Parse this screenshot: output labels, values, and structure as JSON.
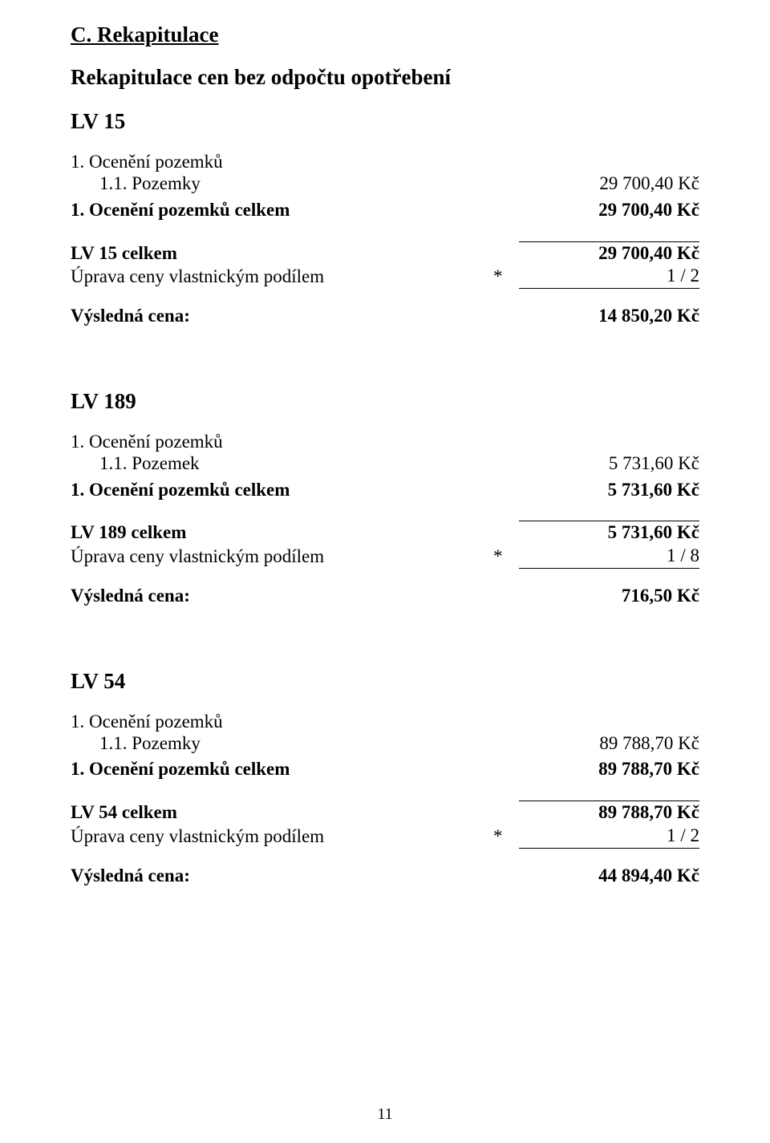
{
  "title_c": "C. Rekapitulace",
  "subtitle": "Rekapitulace cen bez odpočtu opotřebení",
  "sections": [
    {
      "lv_heading": "LV 15",
      "item_head": "1. Ocenění pozemků",
      "sub_item_label": "1.1. Pozemky",
      "sub_item_value": "29 700,40 Kč",
      "total_item_label": "1. Ocenění pozemků celkem",
      "total_item_value": "29 700,40 Kč",
      "lv_total_label": "LV 15 celkem",
      "lv_total_value": "29 700,40 Kč",
      "adjust_label": "Úprava ceny vlastnickým podílem",
      "adjust_star": "*",
      "adjust_value": "1 / 2",
      "result_label": "Výsledná cena:",
      "result_value": "14 850,20 Kč"
    },
    {
      "lv_heading": "LV 189",
      "item_head": "1. Ocenění pozemků",
      "sub_item_label": "1.1. Pozemek",
      "sub_item_value": "5 731,60 Kč",
      "total_item_label": "1. Ocenění pozemků celkem",
      "total_item_value": "5 731,60 Kč",
      "lv_total_label": "LV 189 celkem",
      "lv_total_value": "5 731,60 Kč",
      "adjust_label": "Úprava ceny vlastnickým podílem",
      "adjust_star": "*",
      "adjust_value": "1 / 8",
      "result_label": "Výsledná cena:",
      "result_value": "716,50 Kč"
    },
    {
      "lv_heading": "LV 54",
      "item_head": "1. Ocenění pozemků",
      "sub_item_label": "1.1. Pozemky",
      "sub_item_value": "89 788,70 Kč",
      "total_item_label": "1. Ocenění pozemků celkem",
      "total_item_value": "89 788,70 Kč",
      "lv_total_label": "LV 54 celkem",
      "lv_total_value": "89 788,70 Kč",
      "adjust_label": "Úprava ceny vlastnickým podílem",
      "adjust_star": "*",
      "adjust_value": "1 / 2",
      "result_label": "Výsledná cena:",
      "result_value": "44 894,40 Kč"
    }
  ],
  "page_number": "11"
}
